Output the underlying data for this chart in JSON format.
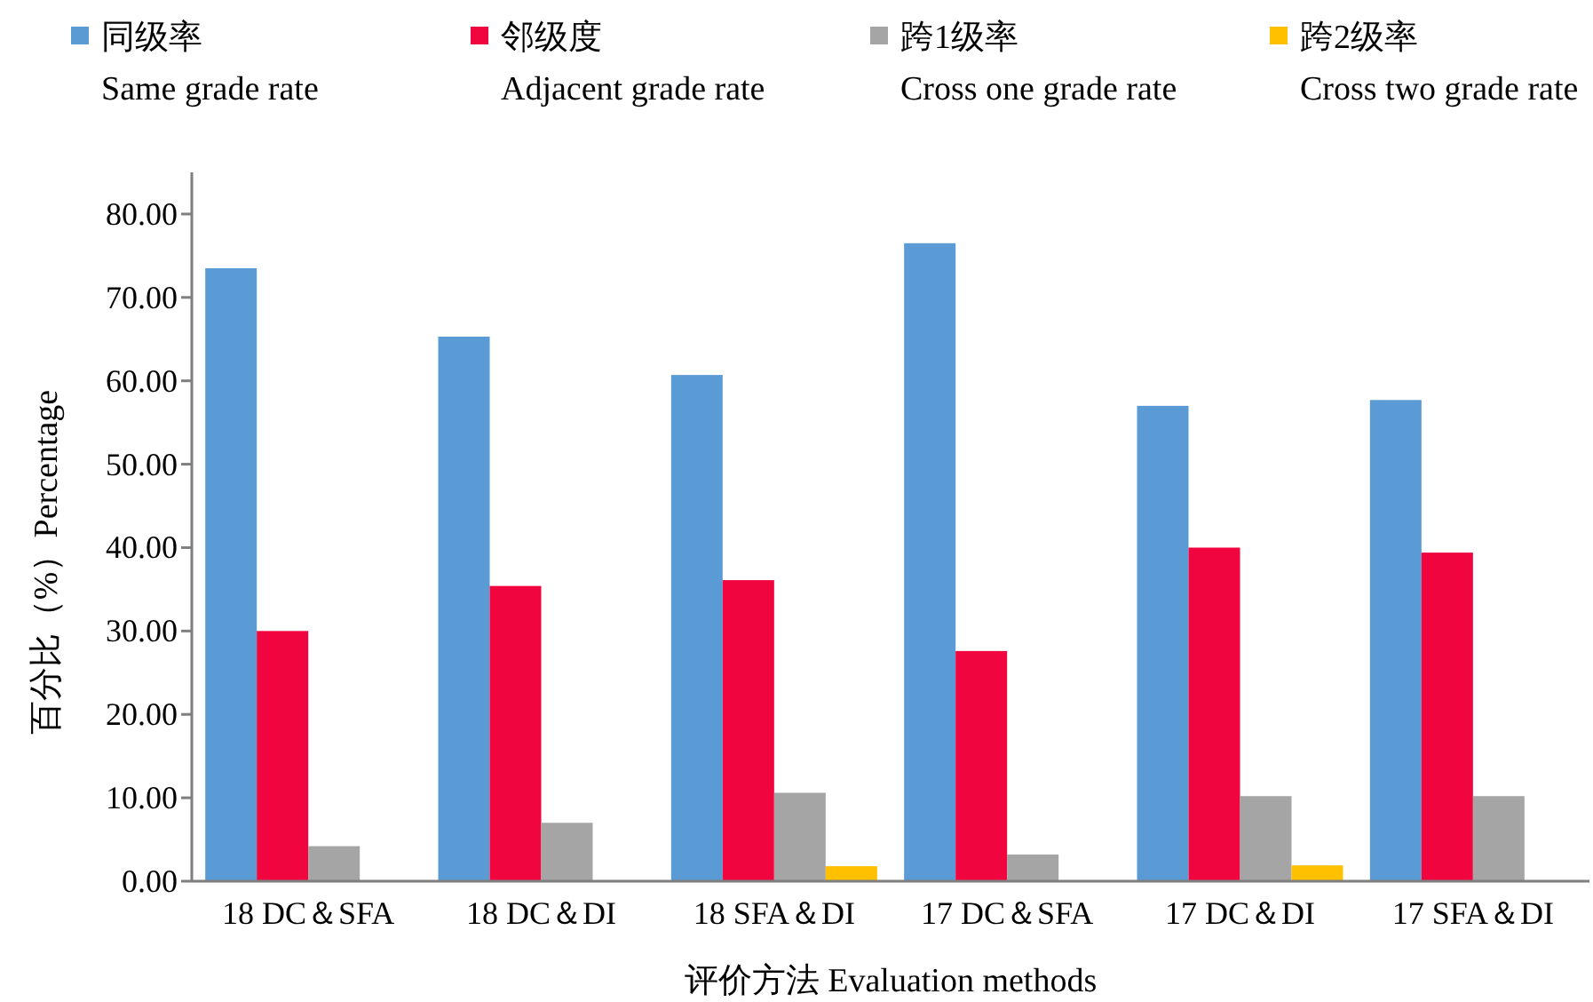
{
  "chart_data": {
    "type": "bar",
    "xlabel": "评价方法 Evaluation methods",
    "ylabel": "百分比（%）Percentage",
    "categories": [
      "18 DC＆SFA",
      "18 DC＆DI",
      "18 SFA＆DI",
      "17 DC＆SFA",
      "17 DC＆DI",
      "17 SFA＆DI"
    ],
    "series": [
      {
        "name": "同级率\nSame grade rate",
        "color": "#5b9bd5",
        "values": [
          73.5,
          65.3,
          60.7,
          76.5,
          57.0,
          57.7
        ]
      },
      {
        "name": "邻级度\nAdjacent grade rate",
        "color": "#f0053f",
        "values": [
          30.0,
          35.4,
          36.1,
          27.6,
          40.0,
          39.4
        ]
      },
      {
        "name": "跨1级率\nCross one grade rate",
        "color": "#a5a5a5",
        "values": [
          4.2,
          7.0,
          10.6,
          3.2,
          10.2,
          10.2
        ]
      },
      {
        "name": "跨2级率\nCross two grade rate",
        "color": "#ffc000",
        "values": [
          0,
          0,
          1.8,
          0,
          1.9,
          0
        ]
      }
    ],
    "ylim": [
      0,
      85
    ],
    "yticks": [
      {
        "value": 0,
        "label": "0.00"
      },
      {
        "value": 10,
        "label": "10.00"
      },
      {
        "value": 20,
        "label": "20.00"
      },
      {
        "value": 30,
        "label": "30.00"
      },
      {
        "value": 40,
        "label": "40.00"
      },
      {
        "value": 50,
        "label": "50.00"
      },
      {
        "value": 60,
        "label": "60.00"
      },
      {
        "value": 70,
        "label": "70.00"
      },
      {
        "value": 80,
        "label": "80.00"
      }
    ],
    "grid": false,
    "legend": "top"
  }
}
